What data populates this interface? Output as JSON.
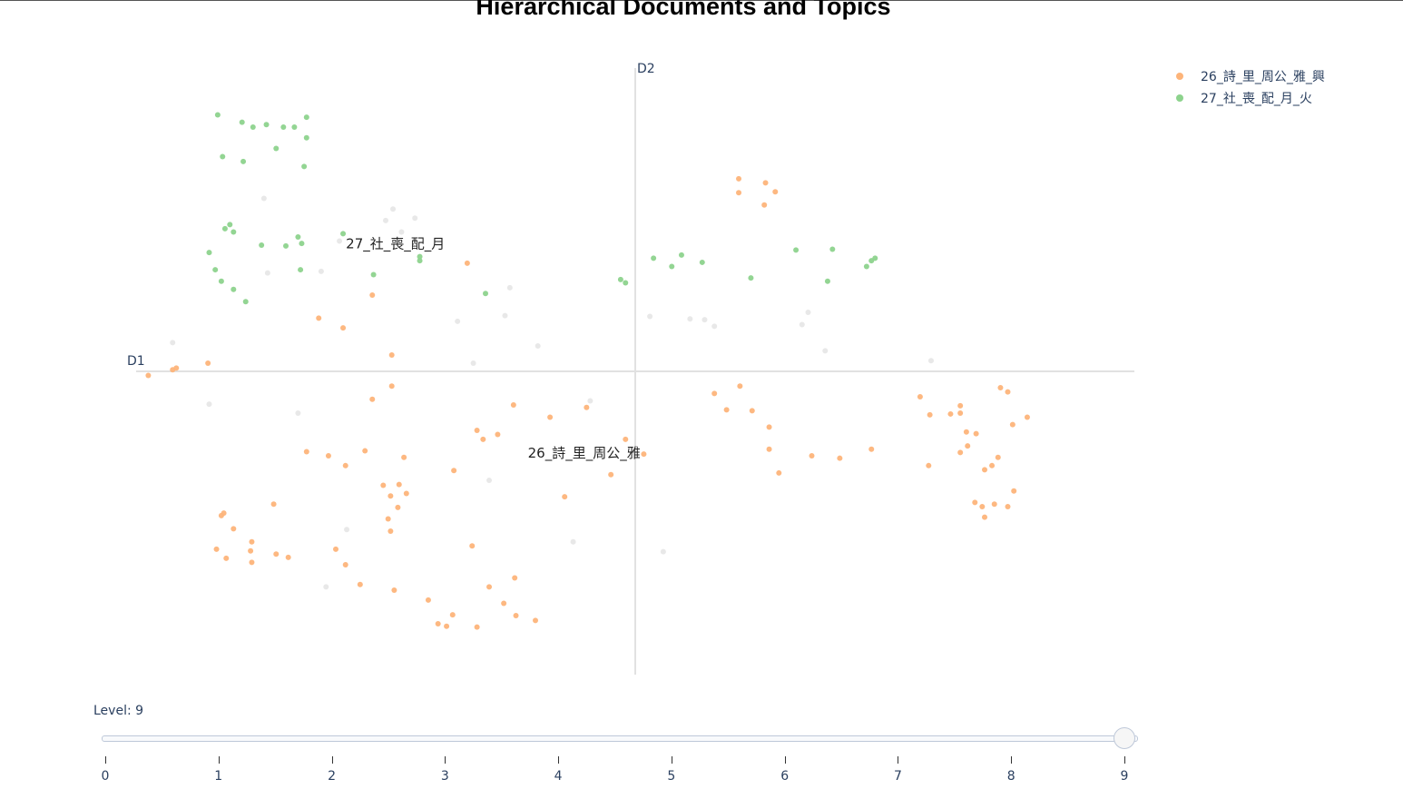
{
  "chart_data": {
    "type": "scatter",
    "title": "Hierarchical Documents and Topics",
    "xlabel": "D1",
    "ylabel": "D2",
    "xlim": [
      0.4,
      8.6
    ],
    "ylim": [
      -3.7,
      3.7
    ],
    "series": [
      {
        "name": "26_詩_里_周公_雅_興",
        "color": "#fdb47a",
        "points": [
          [
            0.5,
            -0.05
          ],
          [
            0.7,
            0.02
          ],
          [
            0.73,
            0.04
          ],
          [
            0.99,
            0.1
          ],
          [
            1.9,
            0.65
          ],
          [
            2.1,
            0.53
          ],
          [
            2.34,
            0.93
          ],
          [
            2.5,
            0.2
          ],
          [
            2.34,
            -0.34
          ],
          [
            2.5,
            -0.18
          ],
          [
            3.12,
            1.32
          ],
          [
            1.8,
            -0.98
          ],
          [
            1.98,
            -1.03
          ],
          [
            2.12,
            -1.15
          ],
          [
            2.28,
            -0.97
          ],
          [
            2.6,
            -1.05
          ],
          [
            3.01,
            -1.21
          ],
          [
            3.2,
            -0.72
          ],
          [
            3.25,
            -0.83
          ],
          [
            3.37,
            -0.77
          ],
          [
            3.5,
            -0.41
          ],
          [
            3.8,
            -0.56
          ],
          [
            4.1,
            -0.44
          ],
          [
            4.42,
            -0.83
          ],
          [
            4.3,
            -1.26
          ],
          [
            4.57,
            -1.01
          ],
          [
            3.92,
            -1.53
          ],
          [
            1.1,
            -1.76
          ],
          [
            1.12,
            -1.73
          ],
          [
            1.2,
            -1.92
          ],
          [
            1.06,
            -2.17
          ],
          [
            1.14,
            -2.28
          ],
          [
            1.35,
            -2.08
          ],
          [
            1.34,
            -2.19
          ],
          [
            1.35,
            -2.33
          ],
          [
            1.53,
            -1.62
          ],
          [
            1.55,
            -2.23
          ],
          [
            1.65,
            -2.27
          ],
          [
            2.04,
            -2.17
          ],
          [
            2.12,
            -2.36
          ],
          [
            2.24,
            -2.6
          ],
          [
            2.43,
            -1.39
          ],
          [
            2.47,
            -1.8
          ],
          [
            2.49,
            -1.52
          ],
          [
            2.49,
            -1.95
          ],
          [
            2.55,
            -1.66
          ],
          [
            2.56,
            -1.38
          ],
          [
            2.62,
            -1.49
          ],
          [
            2.52,
            -2.67
          ],
          [
            2.8,
            -2.79
          ],
          [
            2.88,
            -3.08
          ],
          [
            2.95,
            -3.11
          ],
          [
            3.0,
            -2.97
          ],
          [
            3.16,
            -2.13
          ],
          [
            3.2,
            -3.12
          ],
          [
            3.3,
            -2.63
          ],
          [
            3.42,
            -2.83
          ],
          [
            3.51,
            -2.52
          ],
          [
            3.52,
            -2.98
          ],
          [
            3.68,
            -3.04
          ],
          [
            5.35,
            2.35
          ],
          [
            5.57,
            2.3
          ],
          [
            5.65,
            2.19
          ],
          [
            5.35,
            2.18
          ],
          [
            5.56,
            2.03
          ],
          [
            5.15,
            -0.27
          ],
          [
            5.25,
            -0.47
          ],
          [
            5.36,
            -0.18
          ],
          [
            5.46,
            -0.48
          ],
          [
            5.6,
            -0.68
          ],
          [
            5.6,
            -0.95
          ],
          [
            5.68,
            -1.24
          ],
          [
            5.95,
            -1.03
          ],
          [
            6.18,
            -1.06
          ],
          [
            6.44,
            -0.95
          ],
          [
            6.84,
            -0.31
          ],
          [
            6.92,
            -0.53
          ],
          [
            7.09,
            -0.52
          ],
          [
            7.17,
            -0.42
          ],
          [
            7.17,
            -0.51
          ],
          [
            6.91,
            -1.15
          ],
          [
            7.17,
            -0.99
          ],
          [
            7.23,
            -0.91
          ],
          [
            7.22,
            -0.74
          ],
          [
            7.3,
            -0.76
          ],
          [
            7.37,
            -1.2
          ],
          [
            7.43,
            -1.15
          ],
          [
            7.48,
            -1.05
          ],
          [
            7.5,
            -0.2
          ],
          [
            7.56,
            -0.25
          ],
          [
            7.6,
            -0.65
          ],
          [
            7.72,
            -0.56
          ],
          [
            7.29,
            -1.6
          ],
          [
            7.35,
            -1.65
          ],
          [
            7.37,
            -1.78
          ],
          [
            7.45,
            -1.62
          ],
          [
            7.56,
            -1.65
          ],
          [
            7.61,
            -1.46
          ]
        ]
      },
      {
        "name": "27_社_喪_配_月_火",
        "color": "#8dd38d",
        "points": [
          [
            1.07,
            3.13
          ],
          [
            1.27,
            3.04
          ],
          [
            1.36,
            2.98
          ],
          [
            1.47,
            3.01
          ],
          [
            1.55,
            2.72
          ],
          [
            1.61,
            2.98
          ],
          [
            1.7,
            2.98
          ],
          [
            1.8,
            3.1
          ],
          [
            1.78,
            2.5
          ],
          [
            1.8,
            2.85
          ],
          [
            1.11,
            2.62
          ],
          [
            1.28,
            2.56
          ],
          [
            1.13,
            1.74
          ],
          [
            1.17,
            1.79
          ],
          [
            1.2,
            1.7
          ],
          [
            1.0,
            1.45
          ],
          [
            1.05,
            1.24
          ],
          [
            1.1,
            1.1
          ],
          [
            1.2,
            1.0
          ],
          [
            1.3,
            0.85
          ],
          [
            1.43,
            1.54
          ],
          [
            1.63,
            1.53
          ],
          [
            1.73,
            1.64
          ],
          [
            1.75,
            1.24
          ],
          [
            1.76,
            1.56
          ],
          [
            2.1,
            1.68
          ],
          [
            2.35,
            1.18
          ],
          [
            2.73,
            1.35
          ],
          [
            2.73,
            1.4
          ],
          [
            3.27,
            0.95
          ],
          [
            4.38,
            1.12
          ],
          [
            4.42,
            1.08
          ],
          [
            4.65,
            1.38
          ],
          [
            4.8,
            1.28
          ],
          [
            4.88,
            1.42
          ],
          [
            5.05,
            1.33
          ],
          [
            5.45,
            1.14
          ],
          [
            5.82,
            1.48
          ],
          [
            6.08,
            1.1
          ],
          [
            6.12,
            1.49
          ],
          [
            6.4,
            1.28
          ],
          [
            6.44,
            1.35
          ],
          [
            6.47,
            1.38
          ]
        ]
      },
      {
        "name": "",
        "color": "#e6e6e6",
        "points": [
          [
            0.7,
            0.35
          ],
          [
            1.0,
            -0.4
          ],
          [
            1.45,
            2.11
          ],
          [
            1.48,
            1.2
          ],
          [
            1.73,
            -0.51
          ],
          [
            1.92,
            1.22
          ],
          [
            1.96,
            -2.63
          ],
          [
            2.07,
            1.59
          ],
          [
            2.13,
            -1.93
          ],
          [
            2.45,
            1.84
          ],
          [
            2.51,
            1.98
          ],
          [
            2.58,
            1.7
          ],
          [
            2.69,
            1.87
          ],
          [
            3.04,
            0.61
          ],
          [
            3.17,
            0.1
          ],
          [
            3.3,
            -1.33
          ],
          [
            3.43,
            0.68
          ],
          [
            3.47,
            1.02
          ],
          [
            3.7,
            0.31
          ],
          [
            3.99,
            -2.08
          ],
          [
            4.13,
            -0.36
          ],
          [
            4.62,
            0.67
          ],
          [
            4.73,
            -2.2
          ],
          [
            4.95,
            0.64
          ],
          [
            5.07,
            0.63
          ],
          [
            5.15,
            0.55
          ],
          [
            5.87,
            0.57
          ],
          [
            5.92,
            0.72
          ],
          [
            6.06,
            0.25
          ],
          [
            6.93,
            0.13
          ]
        ]
      }
    ],
    "cluster_labels": [
      {
        "text": "27_社_喪_配_月",
        "x": 2.53,
        "y": 1.55
      },
      {
        "text": "26_詩_里_周公_雅",
        "x": 4.08,
        "y": -1.0
      }
    ],
    "slider": {
      "label": "Level: 9",
      "value": 9,
      "min": 0,
      "max": 9,
      "ticks": [
        "0",
        "1",
        "2",
        "3",
        "4",
        "5",
        "6",
        "7",
        "8",
        "9"
      ]
    },
    "grid": false,
    "legend_position": "top-right"
  }
}
